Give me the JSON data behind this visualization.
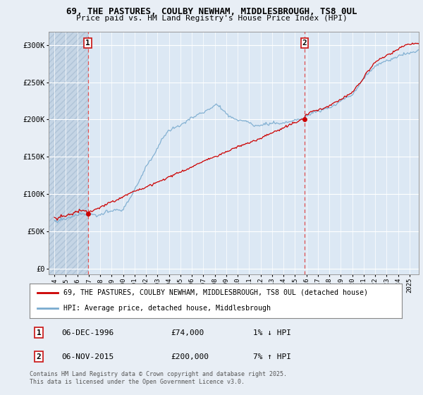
{
  "title1": "69, THE PASTURES, COULBY NEWHAM, MIDDLESBROUGH, TS8 0UL",
  "title2": "Price paid vs. HM Land Registry's House Price Index (HPI)",
  "background_color": "#e8eef5",
  "plot_bg_color": "#dce8f4",
  "hatch_color": "#c5d5e5",
  "sale1_x": 1996.92,
  "sale2_x": 2015.83,
  "xmin": 1993.5,
  "xmax": 2025.8,
  "sale1_price": 74000,
  "sale2_price": 200000,
  "legend1": "69, THE PASTURES, COULBY NEWHAM, MIDDLESBROUGH, TS8 0UL (detached house)",
  "legend2": "HPI: Average price, detached house, Middlesbrough",
  "footer": "Contains HM Land Registry data © Crown copyright and database right 2025.\nThis data is licensed under the Open Government Licence v3.0.",
  "yticks": [
    0,
    50000,
    100000,
    150000,
    200000,
    250000,
    300000
  ],
  "ytick_labels": [
    "£0",
    "£50K",
    "£100K",
    "£150K",
    "£200K",
    "£250K",
    "£300K"
  ],
  "ylim": [
    -8000,
    318000
  ],
  "house_color": "#cc0000",
  "hpi_color": "#7aabcf",
  "sale_line_color": "#e05050",
  "marker_color": "#cc0000",
  "sale_marker_size": 5
}
